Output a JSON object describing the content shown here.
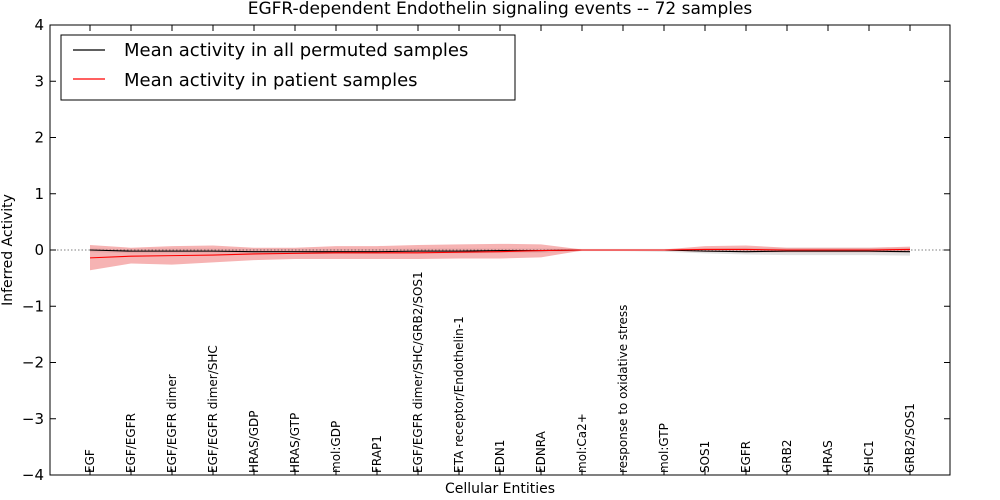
{
  "chart_data": {
    "type": "line",
    "title": "EGFR-dependent Endothelin signaling events -- 72 samples",
    "xlabel": "Cellular Entities",
    "ylabel": "Inferred Activity",
    "ylim": [
      -4,
      4
    ],
    "yticks": [
      "−4",
      "−3",
      "−2",
      "−1",
      "0",
      "1",
      "2",
      "3",
      "4"
    ],
    "ytick_values": [
      -4,
      -3,
      -2,
      -1,
      0,
      1,
      2,
      3,
      4
    ],
    "categories": [
      "EGF",
      "EGF/EGFR",
      "EGF/EGFR dimer",
      "EGF/EGFR dimer/SHC",
      "HRAS/GDP",
      "HRAS/GTP",
      "mol:GDP",
      "FRAP1",
      "EGF/EGFR dimer/SHC/GRB2/SOS1",
      "ETA receptor/Endothelin-1",
      "EDN1",
      "EDNRA",
      "mol:Ca2+",
      "response to oxidative stress",
      "mol:GTP",
      "SOS1",
      "EGFR",
      "GRB2",
      "HRAS",
      "SHC1",
      "GRB2/SOS1"
    ],
    "legend": {
      "location": "top-left",
      "entries": [
        "Mean activity in all permuted samples",
        "Mean activity in patient samples"
      ]
    },
    "colors": {
      "permuted": "#000000",
      "patient": "#ff0000",
      "patient_band": "#f08080",
      "permuted_band": "#bbbbbb"
    },
    "series": [
      {
        "name": "Mean activity in all permuted samples",
        "color": "#000000",
        "values": [
          0.0,
          -0.02,
          -0.02,
          -0.02,
          -0.03,
          -0.03,
          -0.03,
          -0.03,
          -0.02,
          -0.02,
          -0.01,
          -0.01,
          0.0,
          0.0,
          0.0,
          -0.02,
          -0.03,
          -0.02,
          -0.02,
          -0.02,
          -0.03
        ],
        "band_upper": [
          0.03,
          0.02,
          0.03,
          0.03,
          0.02,
          0.02,
          0.02,
          0.02,
          0.03,
          0.03,
          0.03,
          0.03,
          0.02,
          0.02,
          0.02,
          0.03,
          0.04,
          0.04,
          0.04,
          0.04,
          0.04
        ],
        "band_lower": [
          -0.04,
          -0.06,
          -0.06,
          -0.06,
          -0.07,
          -0.07,
          -0.07,
          -0.07,
          -0.06,
          -0.06,
          -0.05,
          -0.05,
          -0.02,
          -0.02,
          -0.03,
          -0.06,
          -0.08,
          -0.09,
          -0.09,
          -0.09,
          -0.1
        ]
      },
      {
        "name": "Mean activity in patient samples",
        "color": "#ff0000",
        "values": [
          -0.14,
          -0.11,
          -0.1,
          -0.09,
          -0.07,
          -0.06,
          -0.05,
          -0.05,
          -0.05,
          -0.04,
          -0.03,
          -0.01,
          0.0,
          0.0,
          0.0,
          0.01,
          0.01,
          0.0,
          0.0,
          0.0,
          0.01
        ],
        "band_upper": [
          0.09,
          0.04,
          0.07,
          0.08,
          0.04,
          0.04,
          0.07,
          0.07,
          0.09,
          0.1,
          0.11,
          0.1,
          0.01,
          0.01,
          0.01,
          0.07,
          0.08,
          0.04,
          0.04,
          0.04,
          0.06
        ],
        "band_lower": [
          -0.36,
          -0.24,
          -0.26,
          -0.22,
          -0.18,
          -0.16,
          -0.16,
          -0.16,
          -0.16,
          -0.15,
          -0.15,
          -0.13,
          -0.01,
          -0.01,
          -0.01,
          -0.03,
          -0.04,
          -0.04,
          -0.04,
          -0.04,
          -0.04
        ]
      }
    ]
  }
}
